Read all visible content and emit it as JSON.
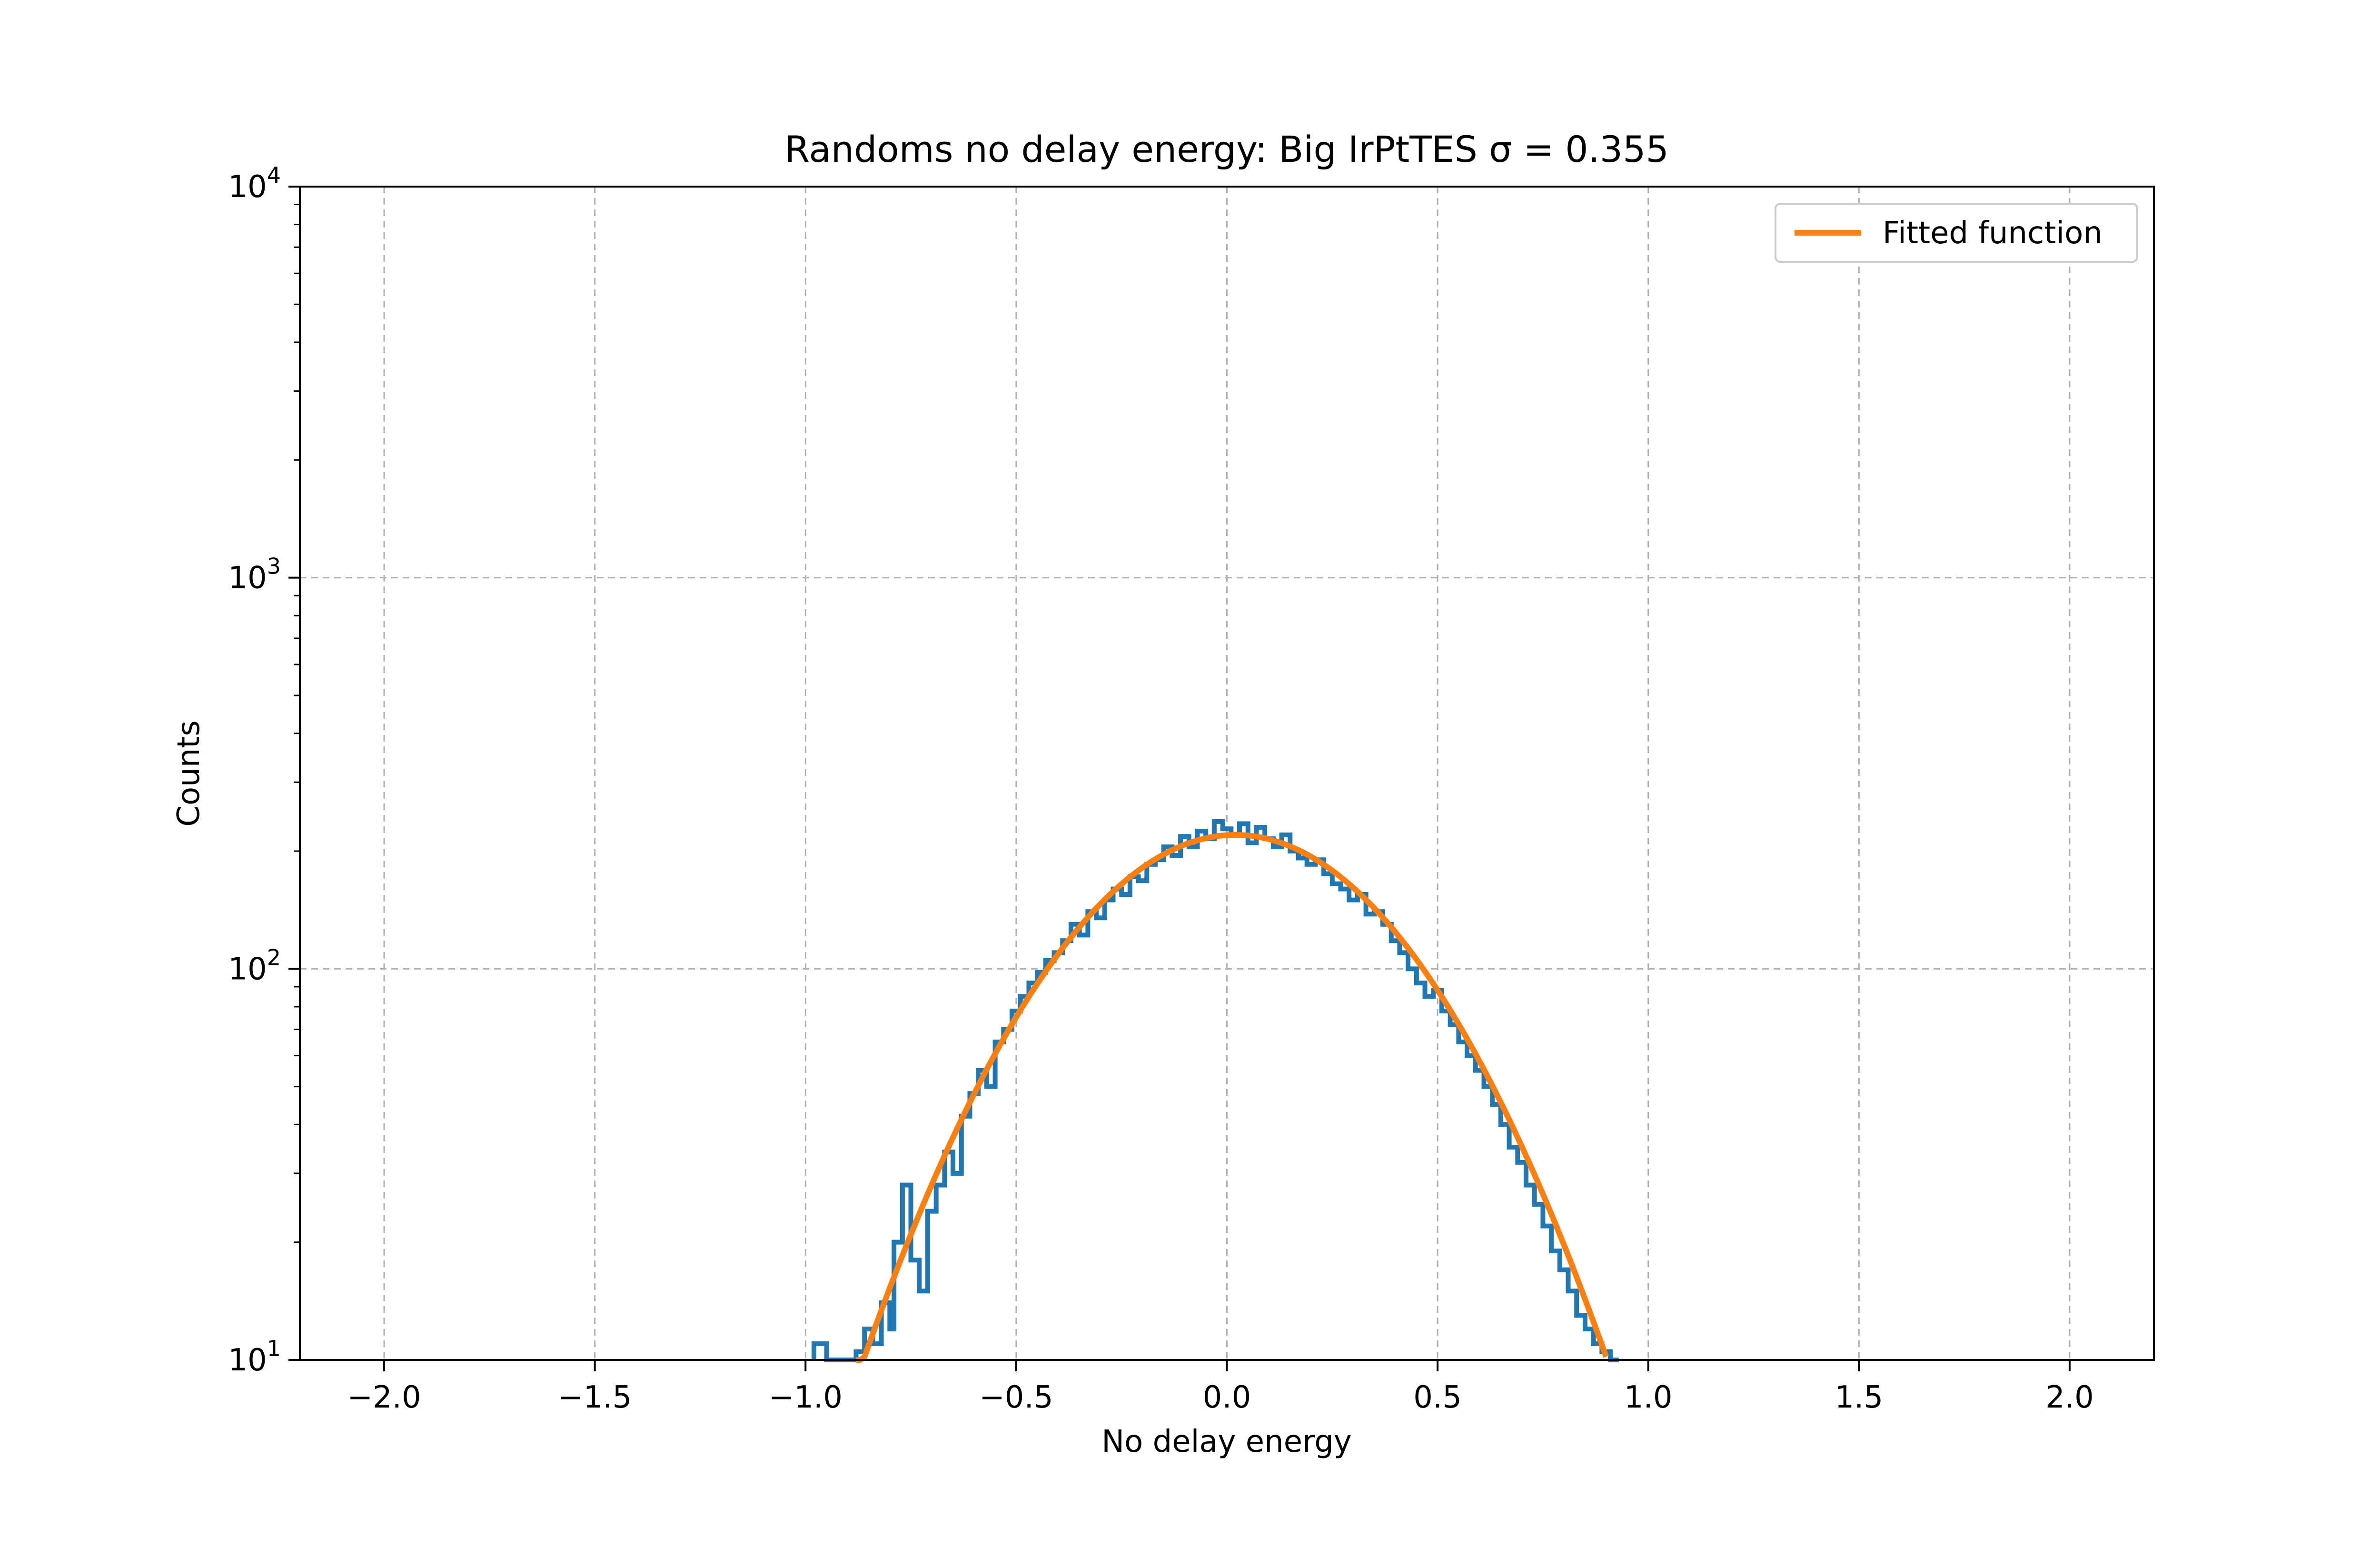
{
  "chart_data": {
    "type": "histogram",
    "title": "Randoms no delay energy: Big IrPtTES σ = 0.355",
    "xlabel": "No delay energy",
    "ylabel": "Counts",
    "xlim": [
      -2.2,
      2.2
    ],
    "ylim": [
      10,
      10000
    ],
    "yscale": "log",
    "grid": true,
    "legend_position": "upper-right",
    "x_ticks": [
      {
        "value": -2.0,
        "label": "−2.0"
      },
      {
        "value": -1.5,
        "label": "−1.5"
      },
      {
        "value": -1.0,
        "label": "−1.0"
      },
      {
        "value": -0.5,
        "label": "−0.5"
      },
      {
        "value": 0.0,
        "label": "0.0"
      },
      {
        "value": 0.5,
        "label": "0.5"
      },
      {
        "value": 1.0,
        "label": "1.0"
      },
      {
        "value": 1.5,
        "label": "1.5"
      },
      {
        "value": 2.0,
        "label": "2.0"
      }
    ],
    "y_ticks": [
      {
        "value": 10,
        "base": "10",
        "exp": "1"
      },
      {
        "value": 100,
        "base": "10",
        "exp": "2"
      },
      {
        "value": 1000,
        "base": "10",
        "exp": "3"
      },
      {
        "value": 10000,
        "base": "10",
        "exp": "4"
      }
    ],
    "histogram": {
      "color": "#1f77b4",
      "bins": [
        [
          -0.98,
          11
        ],
        [
          -0.95,
          9
        ],
        [
          -0.9,
          8
        ],
        [
          -0.88,
          10.5
        ],
        [
          -0.86,
          12
        ],
        [
          -0.84,
          11
        ],
        [
          -0.82,
          14
        ],
        [
          -0.8,
          12
        ],
        [
          -0.79,
          20
        ],
        [
          -0.77,
          28
        ],
        [
          -0.75,
          18
        ],
        [
          -0.73,
          15
        ],
        [
          -0.71,
          24
        ],
        [
          -0.69,
          28
        ],
        [
          -0.67,
          34
        ],
        [
          -0.65,
          30
        ],
        [
          -0.63,
          42
        ],
        [
          -0.61,
          48
        ],
        [
          -0.59,
          55
        ],
        [
          -0.57,
          50
        ],
        [
          -0.55,
          65
        ],
        [
          -0.53,
          70
        ],
        [
          -0.51,
          78
        ],
        [
          -0.49,
          85
        ],
        [
          -0.47,
          92
        ],
        [
          -0.45,
          98
        ],
        [
          -0.43,
          105
        ],
        [
          -0.41,
          110
        ],
        [
          -0.39,
          118
        ],
        [
          -0.37,
          130
        ],
        [
          -0.35,
          122
        ],
        [
          -0.33,
          140
        ],
        [
          -0.31,
          135
        ],
        [
          -0.29,
          150
        ],
        [
          -0.27,
          160
        ],
        [
          -0.25,
          155
        ],
        [
          -0.23,
          172
        ],
        [
          -0.21,
          168
        ],
        [
          -0.19,
          185
        ],
        [
          -0.17,
          190
        ],
        [
          -0.15,
          205
        ],
        [
          -0.13,
          195
        ],
        [
          -0.11,
          218
        ],
        [
          -0.09,
          205
        ],
        [
          -0.07,
          225
        ],
        [
          -0.05,
          215
        ],
        [
          -0.03,
          238
        ],
        [
          -0.01,
          228
        ],
        [
          0.01,
          220
        ],
        [
          0.03,
          235
        ],
        [
          0.05,
          210
        ],
        [
          0.07,
          230
        ],
        [
          0.09,
          215
        ],
        [
          0.11,
          205
        ],
        [
          0.13,
          220
        ],
        [
          0.15,
          200
        ],
        [
          0.17,
          192
        ],
        [
          0.19,
          185
        ],
        [
          0.21,
          190
        ],
        [
          0.23,
          175
        ],
        [
          0.25,
          165
        ],
        [
          0.27,
          160
        ],
        [
          0.29,
          150
        ],
        [
          0.31,
          155
        ],
        [
          0.33,
          138
        ],
        [
          0.35,
          140
        ],
        [
          0.37,
          130
        ],
        [
          0.39,
          118
        ],
        [
          0.41,
          110
        ],
        [
          0.43,
          100
        ],
        [
          0.45,
          92
        ],
        [
          0.47,
          85
        ],
        [
          0.49,
          88
        ],
        [
          0.51,
          78
        ],
        [
          0.53,
          72
        ],
        [
          0.55,
          65
        ],
        [
          0.57,
          60
        ],
        [
          0.59,
          55
        ],
        [
          0.61,
          50
        ],
        [
          0.63,
          45
        ],
        [
          0.65,
          40
        ],
        [
          0.67,
          35
        ],
        [
          0.69,
          32
        ],
        [
          0.71,
          28
        ],
        [
          0.73,
          25
        ],
        [
          0.75,
          22
        ],
        [
          0.77,
          19
        ],
        [
          0.79,
          17
        ],
        [
          0.81,
          15
        ],
        [
          0.83,
          13
        ],
        [
          0.85,
          12
        ],
        [
          0.87,
          11
        ],
        [
          0.89,
          10.5
        ],
        [
          0.91,
          9
        ]
      ]
    },
    "series": [
      {
        "name": "Fitted function",
        "color": "#ff7f0e",
        "type": "line",
        "model": {
          "kind": "gaussian",
          "amplitude": 220,
          "mean": 0.02,
          "sigma": 0.355,
          "x_range": [
            -0.88,
            0.9
          ],
          "samples": 180
        }
      }
    ]
  }
}
